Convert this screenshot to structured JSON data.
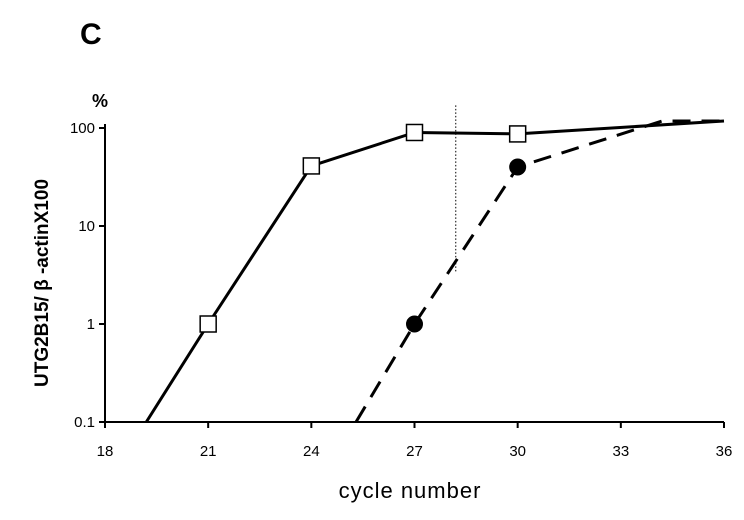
{
  "panel_label": "C",
  "chart_data": {
    "type": "line",
    "title": "",
    "xlabel": "cycle number",
    "ylabel": "UTG2B15/ β -actinX100",
    "yunit": "%",
    "yscale": "log",
    "xlim": [
      18,
      36
    ],
    "ylim": [
      0.1,
      100
    ],
    "x_ticks": [
      "18",
      "21",
      "24",
      "27",
      "30",
      "33",
      "36"
    ],
    "y_ticks": [
      "0.1",
      "1",
      "10",
      "100"
    ],
    "grid": false,
    "legend": "none",
    "reference_line": {
      "x": 28.2,
      "y_range": [
        3.4,
        170
      ],
      "style": "dotted"
    },
    "series": [
      {
        "line_style": "solid",
        "marker": "open-square",
        "points": [
          {
            "x": 19.2,
            "y": 0.1,
            "marker": false
          },
          {
            "x": 21,
            "y": 1
          },
          {
            "x": 24,
            "y": 41
          },
          {
            "x": 27,
            "y": 90
          },
          {
            "x": 30,
            "y": 87
          },
          {
            "x": 36,
            "y": 118,
            "marker": false
          }
        ]
      },
      {
        "line_style": "dashed",
        "marker": "filled-circle",
        "points": [
          {
            "x": 25.3,
            "y": 0.1,
            "marker": false
          },
          {
            "x": 27,
            "y": 1
          },
          {
            "x": 30,
            "y": 40
          },
          {
            "x": 34.2,
            "y": 118,
            "marker": false
          },
          {
            "x": 36,
            "y": 118,
            "marker": false
          }
        ]
      }
    ],
    "colors": {
      "line": "#000000",
      "marker_fill_open": "#ffffff",
      "marker_fill_filled": "#000000"
    }
  }
}
